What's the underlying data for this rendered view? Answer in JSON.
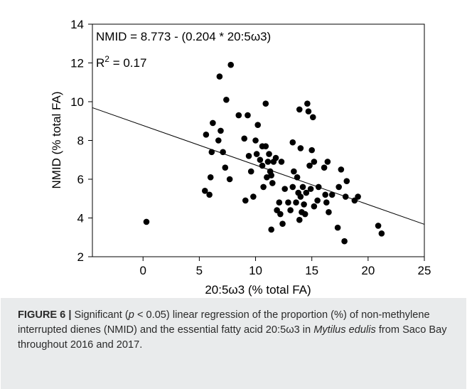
{
  "chart_data": {
    "type": "scatter",
    "annotation_equation": "NMID = 8.773 - (0.204 * 20:5ω3)",
    "annotation_r2_prefix": "R",
    "annotation_r2_sup": "2",
    "annotation_r2_value": " = 0.17",
    "xlabel": "20:5ω3 (% total FA)",
    "ylabel": "NMID (% total FA)",
    "xlim": [
      -4.5,
      25
    ],
    "ylim": [
      2,
      14
    ],
    "xticks": [
      0,
      5,
      10,
      15,
      20,
      25
    ],
    "yticks": [
      2,
      4,
      6,
      8,
      10,
      12,
      14
    ],
    "regression": {
      "intercept": 8.773,
      "slope": -0.204
    },
    "points": [
      [
        0.3,
        3.8
      ],
      [
        5.5,
        5.4
      ],
      [
        5.6,
        8.3
      ],
      [
        5.9,
        5.2
      ],
      [
        6.0,
        6.1
      ],
      [
        6.1,
        7.4
      ],
      [
        6.2,
        8.9
      ],
      [
        6.7,
        8.0
      ],
      [
        6.8,
        11.3
      ],
      [
        6.9,
        8.5
      ],
      [
        7.1,
        7.4
      ],
      [
        7.3,
        6.6
      ],
      [
        7.4,
        10.1
      ],
      [
        7.7,
        6.0
      ],
      [
        7.8,
        11.9
      ],
      [
        8.5,
        9.3
      ],
      [
        9.0,
        8.1
      ],
      [
        9.1,
        4.9
      ],
      [
        9.3,
        9.3
      ],
      [
        9.4,
        7.2
      ],
      [
        9.6,
        6.4
      ],
      [
        9.8,
        5.1
      ],
      [
        10.0,
        8.0
      ],
      [
        10.1,
        7.3
      ],
      [
        10.2,
        8.8
      ],
      [
        10.4,
        7.0
      ],
      [
        10.6,
        7.7
      ],
      [
        10.6,
        6.7
      ],
      [
        10.7,
        5.6
      ],
      [
        10.9,
        9.9
      ],
      [
        10.9,
        7.7
      ],
      [
        11.0,
        6.1
      ],
      [
        11.1,
        6.9
      ],
      [
        11.2,
        7.3
      ],
      [
        11.3,
        6.4
      ],
      [
        11.4,
        6.2
      ],
      [
        11.5,
        5.8
      ],
      [
        11.6,
        6.9
      ],
      [
        11.8,
        7.1
      ],
      [
        11.4,
        3.4
      ],
      [
        11.9,
        4.4
      ],
      [
        12.1,
        4.8
      ],
      [
        12.2,
        4.2
      ],
      [
        12.3,
        6.9
      ],
      [
        12.4,
        3.7
      ],
      [
        12.6,
        5.5
      ],
      [
        12.9,
        4.8
      ],
      [
        13.1,
        4.4
      ],
      [
        13.3,
        5.6
      ],
      [
        13.3,
        7.9
      ],
      [
        13.4,
        6.4
      ],
      [
        13.6,
        4.8
      ],
      [
        13.7,
        6.1
      ],
      [
        13.8,
        5.3
      ],
      [
        13.9,
        9.6
      ],
      [
        13.9,
        3.9
      ],
      [
        14.0,
        5.1
      ],
      [
        14.0,
        7.6
      ],
      [
        14.1,
        4.3
      ],
      [
        14.2,
        5.6
      ],
      [
        14.3,
        4.7
      ],
      [
        14.4,
        4.2
      ],
      [
        14.5,
        5.3
      ],
      [
        14.6,
        9.9
      ],
      [
        14.7,
        9.5
      ],
      [
        14.8,
        6.7
      ],
      [
        14.9,
        5.5
      ],
      [
        15.0,
        7.5
      ],
      [
        15.1,
        9.2
      ],
      [
        15.2,
        6.9
      ],
      [
        15.2,
        4.6
      ],
      [
        15.5,
        4.9
      ],
      [
        15.6,
        5.6
      ],
      [
        16.1,
        6.6
      ],
      [
        16.2,
        5.2
      ],
      [
        16.3,
        4.8
      ],
      [
        16.4,
        6.9
      ],
      [
        16.5,
        4.3
      ],
      [
        16.8,
        5.2
      ],
      [
        17.3,
        3.5
      ],
      [
        17.4,
        5.6
      ],
      [
        17.6,
        6.5
      ],
      [
        17.9,
        2.8
      ],
      [
        18.0,
        5.1
      ],
      [
        18.1,
        5.9
      ],
      [
        18.8,
        4.9
      ],
      [
        19.1,
        5.1
      ],
      [
        20.9,
        3.6
      ],
      [
        21.2,
        3.2
      ]
    ]
  },
  "caption": {
    "label": "FIGURE 6 |",
    "part1": " Significant (",
    "p_symbol": "p",
    "part2": " < 0.05) linear regression of the proportion (%) of non-methylene interrupted dienes (NMID) and the essential fatty acid 20:5ω3 in ",
    "species": "Mytilus edulis",
    "part3": " from Saco Bay throughout 2016 and 2017."
  }
}
